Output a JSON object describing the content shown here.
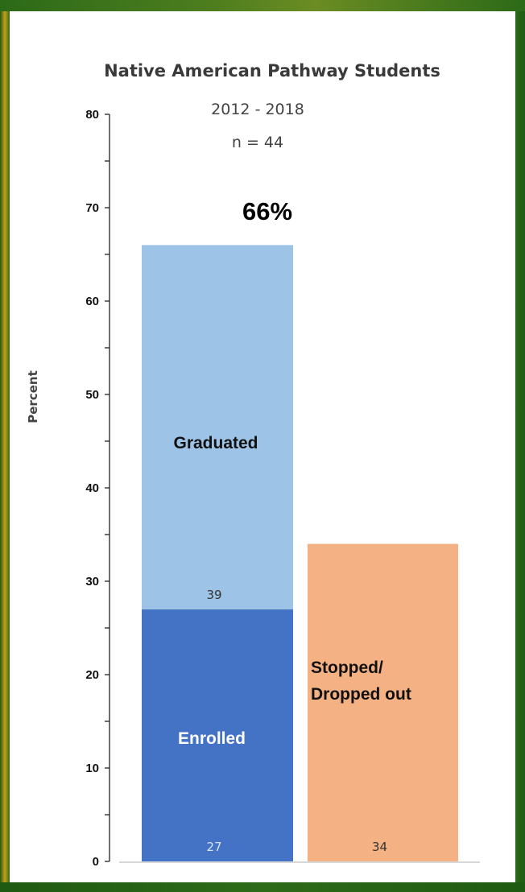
{
  "chart_data": {
    "type": "bar",
    "title": "Native American  Pathway Students",
    "subtitle": "2012 - 2018",
    "sample_size": "n = 44",
    "ylabel": "Percent",
    "ylim": [
      0,
      80
    ],
    "yticks": [
      "0",
      "10",
      "20",
      "30",
      "40",
      "50",
      "60",
      "70",
      "80"
    ],
    "grid": false,
    "stacks": [
      {
        "segments": [
          {
            "label": "Enrolled",
            "value": 27,
            "value_label": "27",
            "color": "#4472c4"
          },
          {
            "label": "Graduated",
            "value": 39,
            "value_label": "39",
            "color": "#9dc3e6"
          }
        ],
        "total_label": "66%"
      },
      {
        "segments": [
          {
            "label": "Stopped/",
            "label_line2": "Dropped out",
            "value": 34,
            "value_label": "34",
            "color": "#f4b183"
          }
        ]
      }
    ]
  }
}
